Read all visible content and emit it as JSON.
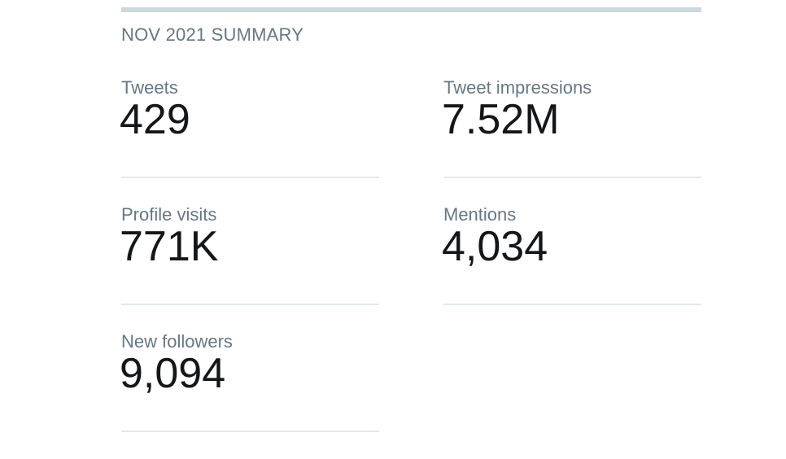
{
  "summary": {
    "title": "NOV 2021 SUMMARY"
  },
  "metrics": [
    {
      "label": "Tweets",
      "value": "429"
    },
    {
      "label": "Tweet impressions",
      "value": "7.52M"
    },
    {
      "label": "Profile visits",
      "value": "771K"
    },
    {
      "label": "Mentions",
      "value": "4,034"
    },
    {
      "label": "New followers",
      "value": "9,094"
    }
  ],
  "colors": {
    "label_text": "#657786",
    "value_text": "#14171a",
    "divider": "#e1e8ed",
    "top_rule": "#ccd6dd"
  }
}
